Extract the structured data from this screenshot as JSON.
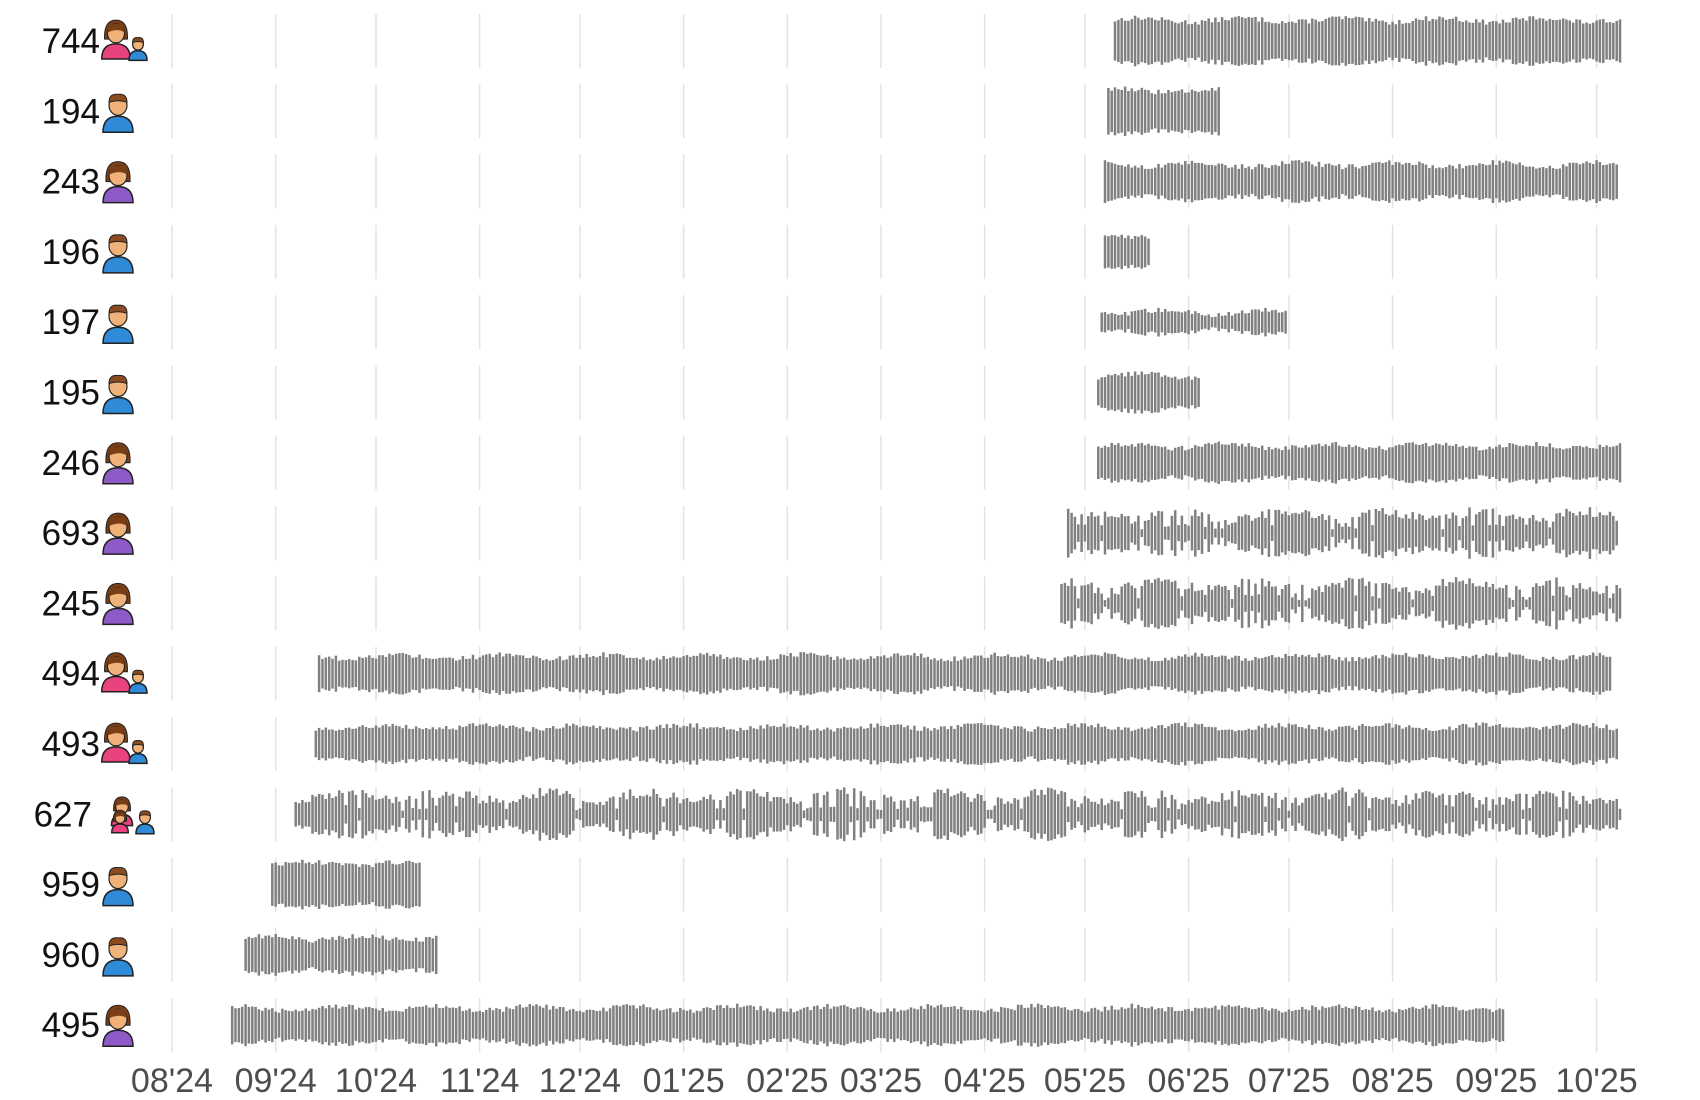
{
  "chart_data": {
    "type": "bar",
    "x_axis": {
      "ticks": [
        "08'24",
        "09'24",
        "10'24",
        "11'24",
        "12'24",
        "01'25",
        "02'25",
        "03'25",
        "04'25",
        "05'25",
        "06'25",
        "07'25",
        "08'25",
        "09'25",
        "10'25"
      ],
      "tick_dates": [
        "2024-08-01",
        "2024-09-01",
        "2024-10-01",
        "2024-11-01",
        "2024-12-01",
        "2025-01-01",
        "2025-02-01",
        "2025-03-01",
        "2025-04-01",
        "2025-05-01",
        "2025-06-01",
        "2025-07-01",
        "2025-08-01",
        "2025-09-01",
        "2025-10-01"
      ],
      "range": [
        "2024-08-01",
        "2025-10-08"
      ]
    },
    "grid": true,
    "bar_color": "#808080",
    "series": [
      {
        "name": "744",
        "icon": "woman-and-man-icon",
        "start": "2025-05-10",
        "end": "2025-10-08",
        "activity": "medium-high"
      },
      {
        "name": "194",
        "icon": "man-icon",
        "start": "2025-05-08",
        "end": "2025-06-10",
        "activity": "medium-high"
      },
      {
        "name": "243",
        "icon": "woman-icon",
        "start": "2025-05-07",
        "end": "2025-10-07",
        "activity": "medium"
      },
      {
        "name": "196",
        "icon": "man-icon",
        "start": "2025-05-07",
        "end": "2025-05-20",
        "activity": "medium"
      },
      {
        "name": "197",
        "icon": "man-icon",
        "start": "2025-05-06",
        "end": "2025-06-30",
        "activity": "low"
      },
      {
        "name": "195",
        "icon": "man-icon",
        "start": "2025-05-05",
        "end": "2025-06-04",
        "activity": "medium"
      },
      {
        "name": "246",
        "icon": "woman-icon",
        "start": "2025-05-05",
        "end": "2025-10-08",
        "activity": "medium"
      },
      {
        "name": "693",
        "icon": "woman-icon",
        "start": "2025-04-26",
        "end": "2025-10-07",
        "activity": "high"
      },
      {
        "name": "245",
        "icon": "woman-icon",
        "start": "2025-04-24",
        "end": "2025-10-08",
        "activity": "high"
      },
      {
        "name": "494",
        "icon": "woman-and-man-icon",
        "start": "2024-09-14",
        "end": "2025-10-05",
        "activity": "medium"
      },
      {
        "name": "493",
        "icon": "woman-and-man-icon",
        "start": "2024-09-13",
        "end": "2025-10-07",
        "activity": "medium"
      },
      {
        "name": "627",
        "icon": "family-icon",
        "start": "2024-09-07",
        "end": "2025-10-08",
        "activity": "high"
      },
      {
        "name": "959",
        "icon": "man-icon",
        "start": "2024-08-31",
        "end": "2024-10-14",
        "activity": "medium-high"
      },
      {
        "name": "960",
        "icon": "man-icon",
        "start": "2024-08-23",
        "end": "2024-10-19",
        "activity": "medium"
      },
      {
        "name": "495",
        "icon": "woman-icon",
        "start": "2024-08-19",
        "end": "2025-09-03",
        "activity": "medium"
      }
    ]
  }
}
